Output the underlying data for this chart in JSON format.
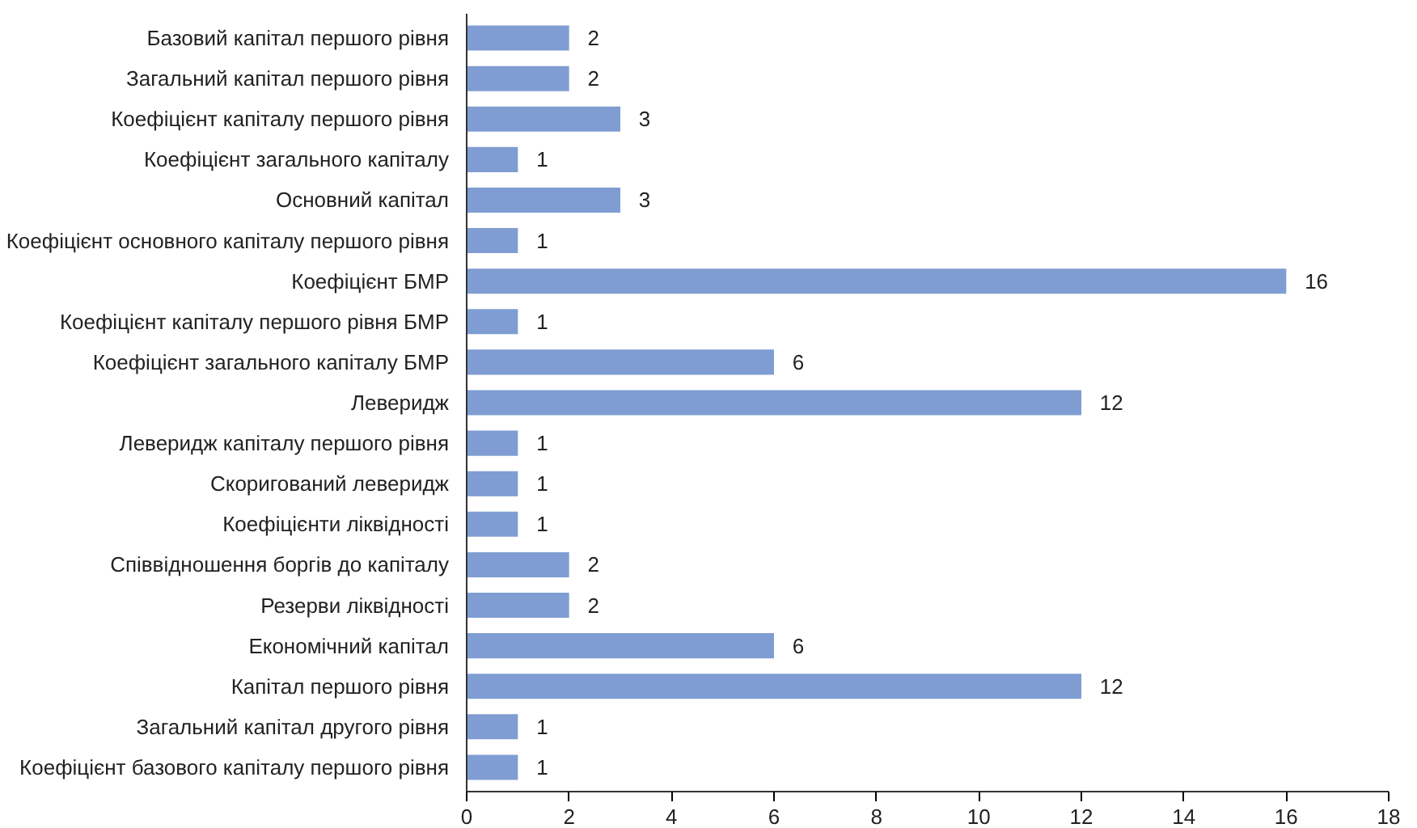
{
  "chart_data": {
    "type": "bar",
    "orientation": "horizontal",
    "categories": [
      "Базовий капітал першого рівня",
      "Загальний капітал першого рівня",
      "Коефіцієнт капіталу першого рівня",
      "Коефіцієнт загального капіталу",
      "Основний капітал",
      "Коефіцієнт основного капіталу першого рівня",
      "Коефіцієнт БМР",
      "Коефіцієнт капіталу першого рівня БМР",
      "Коефіцієнт загального капіталу БМР",
      "Леверидж",
      "Леверидж капіталу першого рівня",
      "Скоригований леверидж",
      "Коефіцієнти ліквідності",
      "Співвідношення боргів до капіталу",
      "Резерви ліквідності",
      "Економічний капітал",
      "Капітал першого рівня",
      "Загальний капітал другого рівня",
      "Коефіцієнт базового капіталу першого рівня"
    ],
    "values": [
      2,
      2,
      3,
      1,
      3,
      1,
      16,
      1,
      6,
      12,
      1,
      1,
      1,
      2,
      2,
      6,
      12,
      1,
      1
    ],
    "color": "#7f9dd2",
    "xlim": [
      0,
      18
    ],
    "xticks": [
      0,
      2,
      4,
      6,
      8,
      10,
      12,
      14,
      16,
      18
    ],
    "data_labels": true,
    "grid": false
  }
}
